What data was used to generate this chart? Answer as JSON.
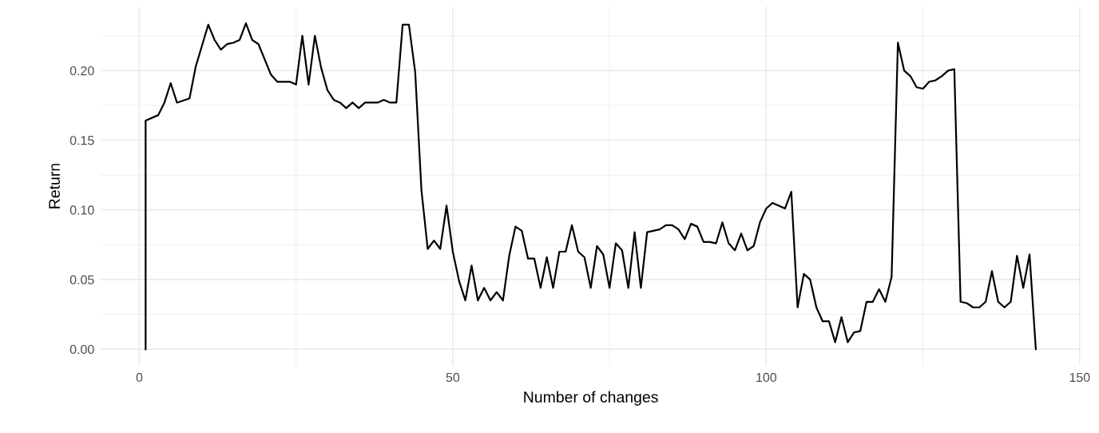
{
  "chart_data": {
    "type": "line",
    "xlabel": "Number of changes",
    "ylabel": "Return",
    "xlim": [
      -6.1,
      150.1
    ],
    "ylim": [
      -0.012,
      0.246
    ],
    "xticks": [
      0,
      {
        "value": 25,
        "label": null
      },
      50,
      {
        "value": 75,
        "label": null
      },
      100,
      {
        "value": 125,
        "label": null
      },
      150
    ],
    "yticks": [
      {
        "value": 0,
        "label": "0.00"
      },
      {
        "value": 0.025,
        "label": null
      },
      {
        "value": 0.05,
        "label": "0.05"
      },
      {
        "value": 0.075,
        "label": null
      },
      {
        "value": 0.1,
        "label": "0.10"
      },
      {
        "value": 0.125,
        "label": null
      },
      {
        "value": 0.15,
        "label": "0.15"
      },
      {
        "value": 0.175,
        "label": null
      },
      {
        "value": 0.2,
        "label": "0.20"
      },
      {
        "value": 0.225,
        "label": null
      }
    ],
    "grid": true,
    "marker": "none",
    "line_style": "solid",
    "series": [
      {
        "color": "#000000",
        "x": [
          1,
          1,
          3,
          4,
          5,
          6,
          8,
          9,
          10,
          11,
          12,
          13,
          14,
          15,
          16,
          17,
          18,
          19,
          21,
          22,
          24,
          25,
          26,
          27,
          28,
          29,
          30,
          31,
          32,
          33,
          34,
          35,
          36,
          38,
          39,
          40,
          41,
          42,
          43,
          44,
          45,
          46,
          47,
          48,
          49,
          50,
          51,
          52,
          53,
          54,
          55,
          56,
          57,
          58,
          59,
          60,
          61,
          62,
          63,
          64,
          65,
          66,
          67,
          68,
          69,
          70,
          71,
          72,
          73,
          74,
          75,
          76,
          77,
          78,
          79,
          80,
          81,
          82,
          83,
          84,
          85,
          86,
          87,
          88,
          89,
          90,
          91,
          92,
          93,
          94,
          95,
          96,
          97,
          98,
          99,
          100,
          101,
          102,
          103,
          104,
          105,
          106,
          107,
          108,
          109,
          110,
          111,
          112,
          113,
          114,
          115,
          116,
          117,
          118,
          119,
          120,
          121,
          122,
          123,
          124,
          125,
          126,
          127,
          128,
          129,
          130,
          131,
          132,
          133,
          134,
          135,
          136,
          137,
          138,
          139,
          140,
          141,
          142,
          143
        ],
        "values": [
          0,
          0.164,
          0.168,
          0.177,
          0.191,
          0.177,
          0.18,
          0.203,
          0.218,
          0.233,
          0.222,
          0.215,
          0.219,
          0.22,
          0.222,
          0.234,
          0.222,
          0.219,
          0.197,
          0.192,
          0.192,
          0.19,
          0.225,
          0.19,
          0.225,
          0.202,
          0.186,
          0.179,
          0.177,
          0.173,
          0.177,
          0.173,
          0.177,
          0.177,
          0.179,
          0.177,
          0.177,
          0.233,
          0.233,
          0.199,
          0.114,
          0.072,
          0.078,
          0.072,
          0.103,
          0.07,
          0.049,
          0.035,
          0.06,
          0.035,
          0.044,
          0.035,
          0.041,
          0.035,
          0.067,
          0.088,
          0.085,
          0.065,
          0.065,
          0.044,
          0.066,
          0.044,
          0.07,
          0.07,
          0.089,
          0.07,
          0.066,
          0.044,
          0.074,
          0.068,
          0.044,
          0.076,
          0.071,
          0.044,
          0.084,
          0.044,
          0.084,
          0.085,
          0.086,
          0.089,
          0.089,
          0.086,
          0.079,
          0.09,
          0.088,
          0.077,
          0.077,
          0.076,
          0.091,
          0.076,
          0.071,
          0.083,
          0.071,
          0.074,
          0.091,
          0.101,
          0.105,
          0.103,
          0.101,
          0.113,
          0.03,
          0.054,
          0.05,
          0.03,
          0.02,
          0.02,
          0.005,
          0.023,
          0.005,
          0.012,
          0.013,
          0.034,
          0.034,
          0.043,
          0.034,
          0.052,
          0.22,
          0.2,
          0.196,
          0.188,
          0.187,
          0.192,
          0.193,
          0.196,
          0.2,
          0.201,
          0.034,
          0.033,
          0.03,
          0.03,
          0.034,
          0.056,
          0.034,
          0.03,
          0.034,
          0.067,
          0.044,
          0.068,
          0
        ]
      }
    ]
  }
}
